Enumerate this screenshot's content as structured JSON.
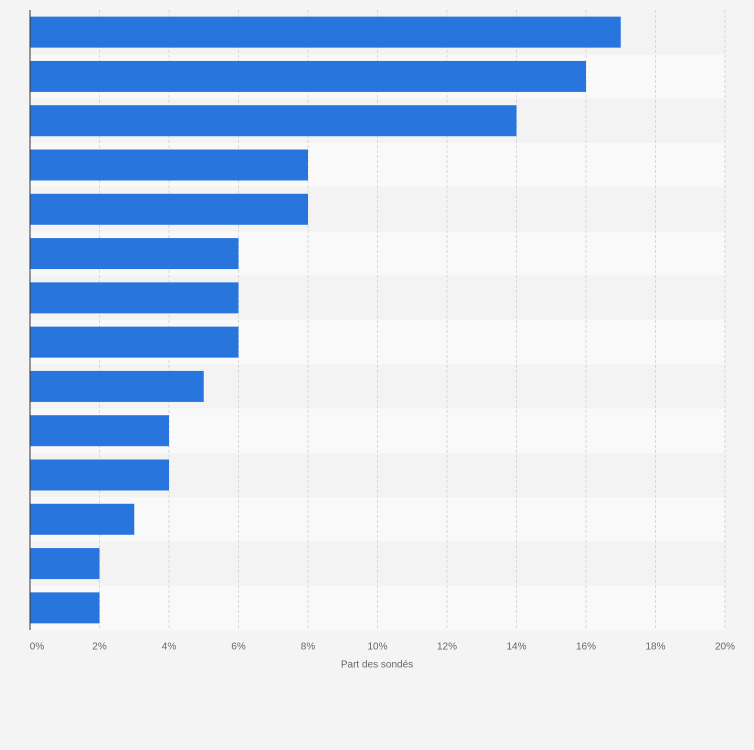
{
  "chart_data": {
    "type": "bar",
    "orientation": "horizontal",
    "x_label": "Part des sondés",
    "categories": [
      null,
      null,
      null,
      null,
      null,
      null,
      null,
      null,
      null,
      null,
      null,
      null,
      null,
      null
    ],
    "values": [
      17,
      16,
      14,
      8,
      8,
      6,
      6,
      6,
      5,
      4,
      4,
      3,
      2,
      2
    ],
    "color": "#2876dd",
    "xlim": [
      0,
      20
    ],
    "xticks": [
      {
        "value": 0,
        "label": "0%"
      },
      {
        "value": 2,
        "label": "2%"
      },
      {
        "value": 4,
        "label": "4%"
      },
      {
        "value": 6,
        "label": "6%"
      },
      {
        "value": 8,
        "label": "8%"
      },
      {
        "value": 10,
        "label": "10%"
      },
      {
        "value": 12,
        "label": "12%"
      },
      {
        "value": 14,
        "label": "14%"
      },
      {
        "value": 16,
        "label": "16%"
      },
      {
        "value": 18,
        "label": "18%"
      },
      {
        "value": 20,
        "label": "20%"
      }
    ],
    "grid": true
  }
}
